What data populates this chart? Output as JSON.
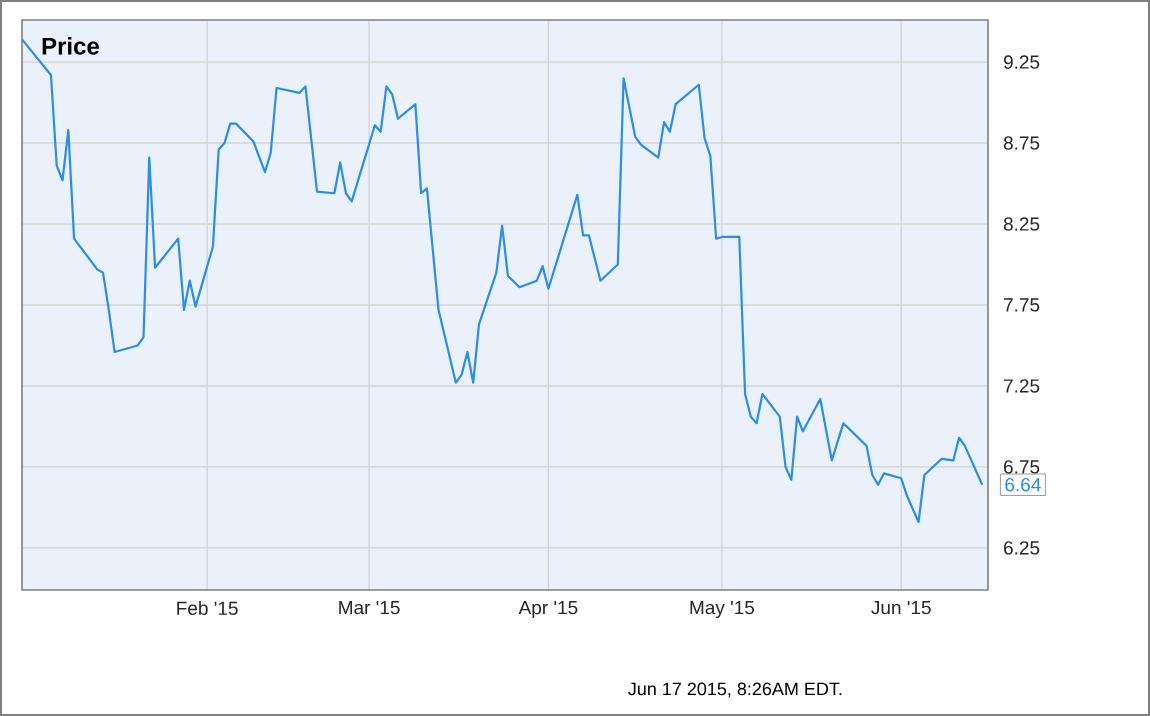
{
  "chart_data": {
    "type": "line",
    "title": "Price",
    "annotations": [
      "Jun 17 2015, 8:26AM EDT."
    ],
    "x": [
      "2014-12-31",
      "2015-01-05",
      "2015-01-06",
      "2015-01-07",
      "2015-01-08",
      "2015-01-09",
      "2015-01-13",
      "2015-01-14",
      "2015-01-15",
      "2015-01-16",
      "2015-01-20",
      "2015-01-21",
      "2015-01-22",
      "2015-01-23",
      "2015-01-27",
      "2015-01-28",
      "2015-01-29",
      "2015-01-30",
      "2015-02-02",
      "2015-02-03",
      "2015-02-04",
      "2015-02-05",
      "2015-02-06",
      "2015-02-09",
      "2015-02-11",
      "2015-02-12",
      "2015-02-13",
      "2015-02-17",
      "2015-02-18",
      "2015-02-20",
      "2015-02-23",
      "2015-02-24",
      "2015-02-25",
      "2015-02-26",
      "2015-03-02",
      "2015-03-03",
      "2015-03-04",
      "2015-03-05",
      "2015-03-06",
      "2015-03-09",
      "2015-03-10",
      "2015-03-11",
      "2015-03-13",
      "2015-03-16",
      "2015-03-17",
      "2015-03-18",
      "2015-03-19",
      "2015-03-20",
      "2015-03-23",
      "2015-03-24",
      "2015-03-25",
      "2015-03-27",
      "2015-03-30",
      "2015-03-31",
      "2015-04-01",
      "2015-04-06",
      "2015-04-07",
      "2015-04-08",
      "2015-04-10",
      "2015-04-13",
      "2015-04-14",
      "2015-04-16",
      "2015-04-17",
      "2015-04-20",
      "2015-04-21",
      "2015-04-22",
      "2015-04-23",
      "2015-04-27",
      "2015-04-28",
      "2015-04-29",
      "2015-04-30",
      "2015-05-01",
      "2015-05-04",
      "2015-05-05",
      "2015-05-06",
      "2015-05-07",
      "2015-05-08",
      "2015-05-11",
      "2015-05-12",
      "2015-05-13",
      "2015-05-14",
      "2015-05-15",
      "2015-05-18",
      "2015-05-20",
      "2015-05-22",
      "2015-05-26",
      "2015-05-27",
      "2015-05-28",
      "2015-05-29",
      "2015-06-01",
      "2015-06-02",
      "2015-06-04",
      "2015-06-05",
      "2015-06-08",
      "2015-06-10",
      "2015-06-11",
      "2015-06-12",
      "2015-06-15"
    ],
    "series": [
      {
        "color": "#2b8de8",
        "values": [
          9.39,
          9.17,
          8.61,
          8.52,
          8.83,
          8.16,
          7.97,
          7.95,
          7.72,
          7.46,
          7.5,
          7.55,
          8.66,
          7.98,
          8.16,
          7.72,
          7.9,
          7.74,
          8.11,
          8.71,
          8.75,
          8.87,
          8.87,
          8.76,
          8.57,
          8.69,
          9.09,
          9.06,
          9.1,
          8.45,
          8.44,
          8.63,
          8.44,
          8.39,
          8.86,
          8.82,
          9.1,
          9.05,
          8.9,
          8.99,
          8.44,
          8.47,
          7.72,
          7.27,
          7.32,
          7.46,
          7.27,
          7.63,
          7.95,
          8.24,
          7.93,
          7.86,
          7.9,
          7.99,
          7.85,
          8.43,
          8.18,
          8.18,
          7.9,
          8.0,
          9.15,
          8.79,
          8.74,
          8.66,
          8.88,
          8.82,
          8.99,
          9.11,
          8.78,
          8.67,
          8.16,
          8.17,
          8.17,
          7.2,
          7.06,
          7.02,
          7.2,
          7.06,
          6.75,
          6.67,
          7.06,
          6.97,
          7.17,
          6.79,
          7.02,
          6.88,
          6.7,
          6.64,
          6.71,
          6.68,
          6.57,
          6.41,
          6.7,
          6.8,
          6.79,
          6.93,
          6.88,
          6.64
        ],
        "value_labels": [
          null,
          null,
          null,
          null,
          null,
          null,
          null,
          null,
          null,
          null,
          null,
          null,
          null,
          null,
          null,
          null,
          null,
          null,
          null,
          null,
          null,
          null,
          null,
          null,
          null,
          null,
          null,
          null,
          null,
          null,
          null,
          null,
          null,
          null,
          null,
          null,
          null,
          null,
          null,
          null,
          null,
          null,
          null,
          null,
          null,
          null,
          null,
          null,
          null,
          null,
          null,
          null,
          null,
          null,
          null,
          null,
          null,
          null,
          null,
          null,
          null,
          null,
          null,
          null,
          null,
          null,
          null,
          null,
          null,
          null,
          null,
          null,
          null,
          null,
          null,
          null,
          null,
          null,
          null,
          null,
          null,
          null,
          null,
          null,
          null,
          null,
          null,
          null,
          null,
          null,
          null,
          null,
          null,
          null,
          null,
          null,
          null,
          "6.64"
        ]
      }
    ],
    "xlim": [
      "2014-12-31",
      "2015-06-16"
    ],
    "xticks": [
      {
        "value": "2015-02-01",
        "label": "Feb '15"
      },
      {
        "value": "2015-03-01",
        "label": "Mar '15"
      },
      {
        "value": "2015-04-01",
        "label": "Apr '15"
      },
      {
        "value": "2015-05-01",
        "label": "May '15"
      },
      {
        "value": "2015-06-01",
        "label": "Jun '15"
      }
    ],
    "ylim": [
      5.99,
      9.51
    ],
    "yticks": [
      6.25,
      6.75,
      7.25,
      7.75,
      8.25,
      8.75,
      9.25
    ],
    "grid": true,
    "marker": "none",
    "line_style": "solid"
  }
}
